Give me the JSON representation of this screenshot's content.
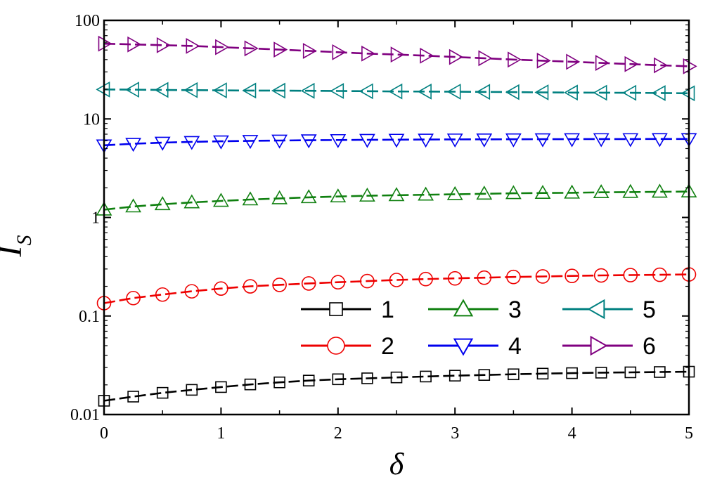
{
  "chart_data": {
    "type": "line",
    "xlabel": "δ",
    "ylabel": "I",
    "ylabel_subscript": "S",
    "yscale": "log",
    "xlim": [
      0,
      5
    ],
    "ylim": [
      0.01,
      100
    ],
    "grid": false,
    "legend_position": "bottom-right",
    "x_ticks": [
      "0",
      "1",
      "2",
      "3",
      "4",
      "5"
    ],
    "y_ticks": [
      "0.01",
      "0.1",
      "1",
      "10",
      "100"
    ],
    "x": [
      0,
      0.25,
      0.5,
      0.75,
      1,
      1.25,
      1.5,
      1.75,
      2,
      2.25,
      2.5,
      2.75,
      3,
      3.25,
      3.5,
      3.75,
      4,
      4.25,
      4.5,
      4.75,
      5
    ],
    "series": [
      {
        "name": "1",
        "color": "#000000",
        "marker": "square",
        "values": [
          0.0138,
          0.0152,
          0.0166,
          0.0178,
          0.019,
          0.0202,
          0.0212,
          0.0221,
          0.0228,
          0.0233,
          0.0238,
          0.0243,
          0.0248,
          0.0252,
          0.0256,
          0.026,
          0.0263,
          0.0266,
          0.0268,
          0.027,
          0.0272
        ]
      },
      {
        "name": "2",
        "color": "#ee0000",
        "marker": "circle",
        "values": [
          0.135,
          0.152,
          0.165,
          0.178,
          0.19,
          0.2,
          0.207,
          0.214,
          0.22,
          0.226,
          0.232,
          0.237,
          0.241,
          0.245,
          0.249,
          0.252,
          0.255,
          0.258,
          0.26,
          0.262,
          0.264
        ]
      },
      {
        "name": "3",
        "color": "#108010",
        "marker": "triangle-up",
        "values": [
          1.2,
          1.29,
          1.36,
          1.42,
          1.47,
          1.52,
          1.56,
          1.6,
          1.63,
          1.66,
          1.68,
          1.7,
          1.72,
          1.74,
          1.76,
          1.77,
          1.78,
          1.8,
          1.81,
          1.82,
          1.83
        ]
      },
      {
        "name": "4",
        "color": "#0000ee",
        "marker": "triangle-down",
        "values": [
          5.4,
          5.6,
          5.75,
          5.85,
          5.93,
          5.99,
          6.04,
          6.08,
          6.11,
          6.14,
          6.16,
          6.18,
          6.2,
          6.21,
          6.22,
          6.23,
          6.24,
          6.25,
          6.25,
          6.26,
          6.26
        ]
      },
      {
        "name": "5",
        "color": "#008080",
        "marker": "triangle-left",
        "values": [
          19.9,
          19.8,
          19.7,
          19.6,
          19.5,
          19.4,
          19.35,
          19.3,
          19.2,
          19.1,
          19.0,
          18.95,
          18.9,
          18.8,
          18.7,
          18.6,
          18.5,
          18.45,
          18.4,
          18.3,
          18.2
        ]
      },
      {
        "name": "6",
        "color": "#800080",
        "marker": "triangle-right",
        "values": [
          58,
          57,
          56,
          55,
          53.5,
          52,
          50.5,
          49,
          47.5,
          46,
          45,
          43.8,
          42.5,
          41.3,
          40,
          39,
          38,
          37,
          36,
          35,
          34.2
        ]
      }
    ]
  }
}
